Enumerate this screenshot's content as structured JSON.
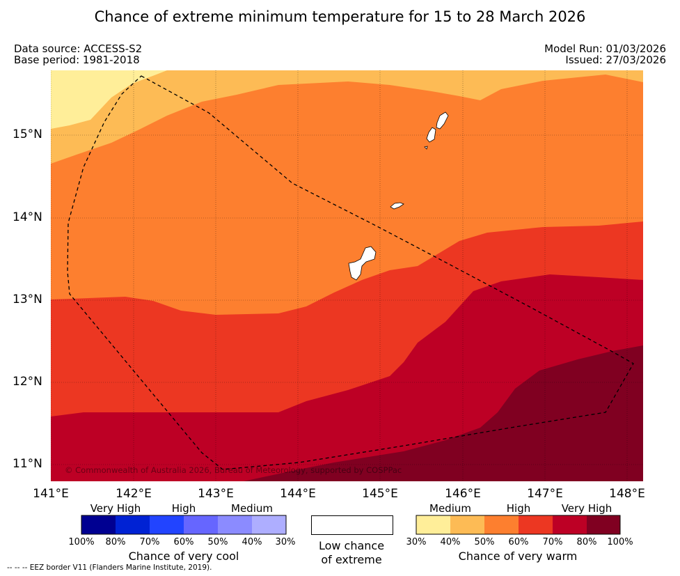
{
  "title": "Chance of extreme minimum temperature for 15 to 28 March 2026",
  "meta": {
    "data_source": "Data source: ACCESS-S2",
    "base_period": "Base period: 1981-2018",
    "model_run": "Model Run: 01/03/2026",
    "issued": "Issued: 27/03/2026"
  },
  "map": {
    "lat_labels": [
      "15°N",
      "14°N",
      "13°N",
      "12°N",
      "11°N"
    ],
    "lon_labels": [
      "141°E",
      "142°E",
      "143°E",
      "144°E",
      "145°E",
      "146°E",
      "147°E",
      "148°E"
    ],
    "copyright": "© Commonwealth of Australia 2026, Bureau of Meteorology, supported by COSPPac",
    "colors": {
      "warm_30_40": "#ffee99",
      "warm_40_50": "#fdbb55",
      "warm_50_60": "#fd7f2f",
      "warm_60_70": "#ec3722",
      "warm_70_80": "#bd0025",
      "warm_80_100": "#800021",
      "land": "#ffffff",
      "eez": "#000000"
    }
  },
  "legend": {
    "cool": {
      "headers": [
        "Very High",
        "High",
        "Medium"
      ],
      "colors": [
        "#000091",
        "#0022d4",
        "#2244ff",
        "#6666ff",
        "#8b8bff",
        "#aeaeff"
      ],
      "ticks": [
        "100%",
        "80%",
        "70%",
        "60%",
        "50%",
        "40%",
        "30%"
      ],
      "title": "Chance of very cool"
    },
    "low": {
      "line1": "Low chance",
      "line2": "of extreme"
    },
    "warm": {
      "headers": [
        "Medium",
        "High",
        "Very High"
      ],
      "colors": [
        "#ffee99",
        "#fdbb55",
        "#fd7f2f",
        "#ec3722",
        "#bd0025",
        "#800021"
      ],
      "ticks": [
        "30%",
        "40%",
        "50%",
        "60%",
        "70%",
        "80%",
        "100%"
      ],
      "title": "Chance of very warm"
    }
  },
  "footnote": "--  --  -- EEZ border V11 (Flanders Marine Institute, 2019)."
}
